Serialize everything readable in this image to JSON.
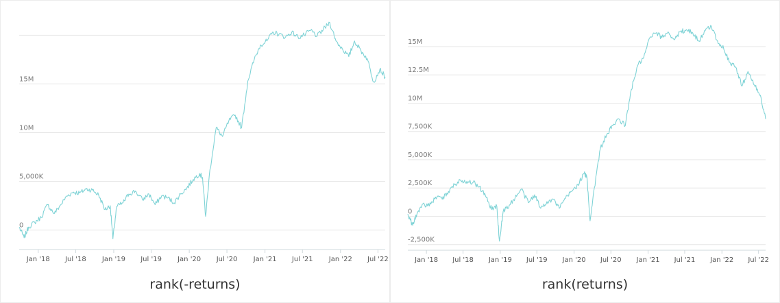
{
  "chart_data": [
    {
      "type": "line",
      "title": "rank(-returns)",
      "xlabel": "",
      "ylabel": "",
      "x_range": [
        "2017-10-01",
        "2022-08-05"
      ],
      "ylim": [
        -2000000,
        21500000
      ],
      "y_ticks": [
        0,
        5000000,
        10000000,
        15000000,
        20000000
      ],
      "y_tick_labels": [
        "0",
        "5,000K",
        "10M",
        "15M",
        ""
      ],
      "x_ticks": [
        "2018-01-01",
        "2018-07-01",
        "2019-01-01",
        "2019-07-01",
        "2020-01-01",
        "2020-07-01",
        "2021-01-01",
        "2021-07-01",
        "2022-01-01",
        "2022-07-01"
      ],
      "x_tick_labels": [
        "Jan '18",
        "Jul '18",
        "Jan '19",
        "Jul '19",
        "Jan '20",
        "Jul '20",
        "Jan '21",
        "Jul '21",
        "Jan '22",
        "Jul '22"
      ],
      "grid": true,
      "color": "#7fd3d6",
      "series": [
        {
          "x": [
            "2017-10-01",
            "2017-10-25",
            "2017-11-15",
            "2017-12-15",
            "2018-01-15",
            "2018-02-15",
            "2018-03-20",
            "2018-04-20",
            "2018-05-20",
            "2018-06-20",
            "2018-07-20",
            "2018-08-20",
            "2018-09-20",
            "2018-10-20",
            "2018-11-20",
            "2018-12-15",
            "2018-12-28",
            "2019-01-15",
            "2019-02-15",
            "2019-03-15",
            "2019-04-15",
            "2019-05-20",
            "2019-06-20",
            "2019-07-20",
            "2019-08-20",
            "2019-09-20",
            "2019-10-20",
            "2019-11-20",
            "2019-12-20",
            "2020-01-20",
            "2020-02-20",
            "2020-03-05",
            "2020-03-20",
            "2020-04-10",
            "2020-05-10",
            "2020-06-10",
            "2020-07-10",
            "2020-08-10",
            "2020-09-10",
            "2020-10-10",
            "2020-11-10",
            "2020-12-10",
            "2021-01-10",
            "2021-02-10",
            "2021-03-10",
            "2021-04-10",
            "2021-05-10",
            "2021-06-10",
            "2021-07-10",
            "2021-08-10",
            "2021-09-10",
            "2021-10-10",
            "2021-11-10",
            "2021-12-10",
            "2022-01-10",
            "2022-02-10",
            "2022-03-10",
            "2022-04-10",
            "2022-05-10",
            "2022-06-10",
            "2022-07-10",
            "2022-08-05"
          ],
          "y": [
            300000,
            -800000,
            300000,
            800000,
            1300000,
            2600000,
            1700000,
            2600000,
            3500000,
            3900000,
            3800000,
            4200000,
            4100000,
            3600000,
            2100000,
            2500000,
            -900000,
            2400000,
            2800000,
            3700000,
            4000000,
            3100000,
            3700000,
            2600000,
            3500000,
            3300000,
            2800000,
            3700000,
            4300000,
            5200000,
            5800000,
            5400000,
            1400000,
            6200000,
            10500000,
            9600000,
            11200000,
            11800000,
            10500000,
            15300000,
            17500000,
            19000000,
            19400000,
            20300000,
            20100000,
            19800000,
            20300000,
            19800000,
            20000000,
            20500000,
            19900000,
            20600000,
            21300000,
            19400000,
            18600000,
            17800000,
            19400000,
            18400000,
            17600000,
            15200000,
            16500000,
            15700000
          ]
        }
      ]
    },
    {
      "type": "line",
      "title": "rank(returns)",
      "xlabel": "",
      "ylabel": "",
      "x_range": [
        "2017-10-01",
        "2022-08-05"
      ],
      "ylim": [
        -3000000,
        17300000
      ],
      "y_ticks": [
        -2500000,
        0,
        2500000,
        5000000,
        7500000,
        10000000,
        12500000,
        15000000
      ],
      "y_tick_labels": [
        "-2,500K",
        "0",
        "2,500K",
        "5,000K",
        "7,500K",
        "10M",
        "12.5M",
        "15M"
      ],
      "x_ticks": [
        "2018-01-01",
        "2018-07-01",
        "2019-01-01",
        "2019-07-01",
        "2020-01-01",
        "2020-07-01",
        "2021-01-01",
        "2021-07-01",
        "2022-01-01",
        "2022-07-01"
      ],
      "x_tick_labels": [
        "Jan '18",
        "Jul '18",
        "Jan '19",
        "Jul '19",
        "Jan '20",
        "Jul '20",
        "Jan '21",
        "Jul '21",
        "Jan '22",
        "Jul '22"
      ],
      "grid": true,
      "color": "#7fd3d6",
      "series": [
        {
          "x": [
            "2017-10-01",
            "2017-10-25",
            "2017-11-15",
            "2017-12-15",
            "2018-01-15",
            "2018-02-15",
            "2018-03-20",
            "2018-04-20",
            "2018-05-20",
            "2018-06-20",
            "2018-07-20",
            "2018-08-20",
            "2018-09-20",
            "2018-10-20",
            "2018-11-20",
            "2018-12-15",
            "2018-12-28",
            "2019-01-15",
            "2019-02-15",
            "2019-03-15",
            "2019-04-15",
            "2019-05-20",
            "2019-06-20",
            "2019-07-20",
            "2019-08-20",
            "2019-09-20",
            "2019-10-20",
            "2019-11-20",
            "2019-12-20",
            "2020-01-20",
            "2020-02-20",
            "2020-03-05",
            "2020-03-20",
            "2020-04-10",
            "2020-05-10",
            "2020-06-10",
            "2020-07-10",
            "2020-08-10",
            "2020-09-10",
            "2020-10-10",
            "2020-11-10",
            "2020-12-10",
            "2021-01-10",
            "2021-02-10",
            "2021-03-10",
            "2021-04-10",
            "2021-05-10",
            "2021-06-10",
            "2021-07-10",
            "2021-08-10",
            "2021-09-10",
            "2021-10-10",
            "2021-11-10",
            "2021-12-10",
            "2022-01-10",
            "2022-02-10",
            "2022-03-10",
            "2022-04-10",
            "2022-05-10",
            "2022-06-10",
            "2022-07-10",
            "2022-08-05"
          ],
          "y": [
            200000,
            -800000,
            200000,
            1100000,
            900000,
            1700000,
            1500000,
            2200000,
            2800000,
            3200000,
            3100000,
            3000000,
            2600000,
            1800000,
            600000,
            900000,
            -2200000,
            400000,
            1000000,
            1600000,
            2400000,
            1200000,
            1900000,
            700000,
            1300000,
            1500000,
            700000,
            1600000,
            2200000,
            2800000,
            3800000,
            3400000,
            -400000,
            2500000,
            6000000,
            7200000,
            8000000,
            8600000,
            8000000,
            11200000,
            13300000,
            14000000,
            15800000,
            16200000,
            15800000,
            16300000,
            15600000,
            16300000,
            16500000,
            16200000,
            15500000,
            16400000,
            16800000,
            15500000,
            14800000,
            13600000,
            13200000,
            11500000,
            12800000,
            11600000,
            10700000,
            8600000
          ]
        }
      ]
    }
  ]
}
